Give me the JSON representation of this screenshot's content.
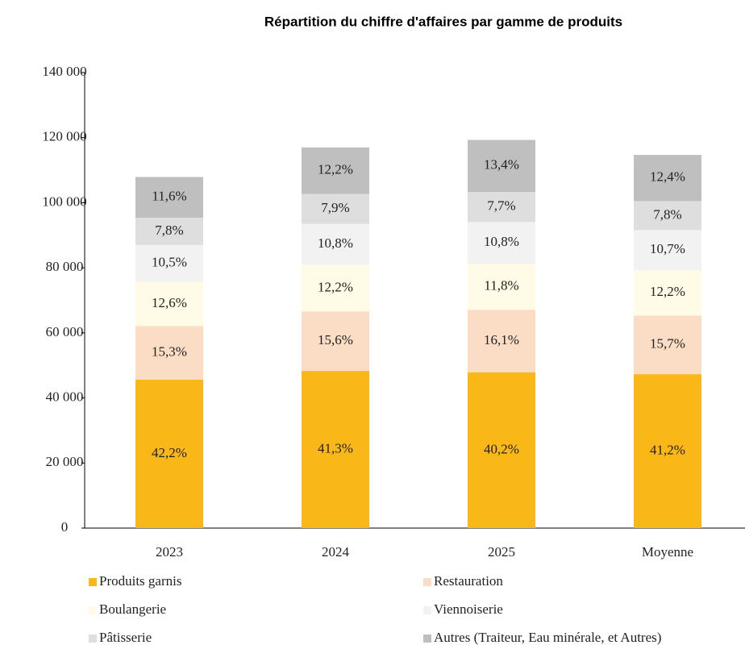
{
  "chart_data": {
    "type": "stacked_bar",
    "title": "Répartition du chiffre d'affaires par gamme de produits",
    "categories": [
      "2023",
      "2024",
      "2025",
      "Moyenne"
    ],
    "ylim": [
      0,
      140000
    ],
    "yticks": [
      0,
      {
        "value": 20000,
        "label": "20 000"
      },
      {
        "value": 40000,
        "label": "40 000"
      },
      {
        "value": 60000,
        "label": "60 000"
      },
      {
        "value": 80000,
        "label": "80 000"
      },
      {
        "value": 100000,
        "label": "100 000"
      },
      {
        "value": 120000,
        "label": "120 000"
      },
      {
        "value": 140000,
        "label": "140 000"
      }
    ],
    "series": [
      {
        "name": "Produits garnis",
        "color": "#f9b718",
        "values": [
          45600,
          48300,
          47900,
          47300
        ],
        "shares": [
          42.2,
          41.3,
          40.2,
          41.2
        ],
        "share_labels": [
          "42,2%",
          "41,3%",
          "40,2%",
          "41,2%"
        ]
      },
      {
        "name": "Restauration",
        "color": "#fbdcc4",
        "values": [
          16500,
          18300,
          19200,
          18000
        ],
        "shares": [
          15.3,
          15.6,
          16.1,
          15.7
        ],
        "share_labels": [
          "15,3%",
          "15,6%",
          "16,1%",
          "15,7%"
        ]
      },
      {
        "name": "Boulangerie",
        "color": "#fffbe6",
        "values": [
          13600,
          14300,
          14100,
          14000
        ],
        "shares": [
          12.6,
          12.2,
          11.8,
          12.2
        ],
        "share_labels": [
          "12,6%",
          "12,2%",
          "11,8%",
          "12,2%"
        ]
      },
      {
        "name": "Viennoiserie",
        "color": "#f2f2f2",
        "values": [
          11300,
          12600,
          12900,
          12300
        ],
        "shares": [
          10.5,
          10.8,
          10.8,
          10.7
        ],
        "share_labels": [
          "10,5%",
          "10,8%",
          "10,8%",
          "10,7%"
        ]
      },
      {
        "name": "Pâtisserie",
        "color": "#dedede",
        "values": [
          8400,
          9200,
          9200,
          8900
        ],
        "shares": [
          7.8,
          7.9,
          7.7,
          7.8
        ],
        "share_labels": [
          "7,8%",
          "7,9%",
          "7,7%",
          "7,8%"
        ]
      },
      {
        "name": "Autres (Traiteur, Eau minérale, et Autres)",
        "color": "#bfbfbf",
        "values": [
          12500,
          14300,
          16000,
          14200
        ],
        "shares": [
          11.6,
          12.2,
          13.4,
          12.4
        ],
        "share_labels": [
          "11,6%",
          "12,2%",
          "13,4%",
          "12,4%"
        ]
      }
    ]
  }
}
